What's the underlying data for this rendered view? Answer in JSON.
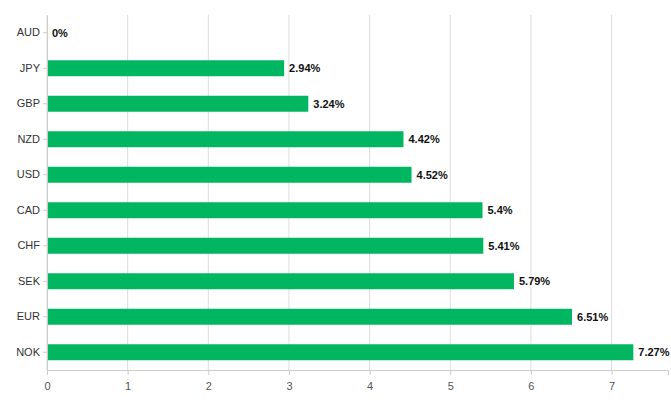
{
  "chart_data": {
    "type": "bar",
    "orientation": "horizontal",
    "categories": [
      "AUD",
      "JPY",
      "GBP",
      "NZD",
      "USD",
      "CAD",
      "CHF",
      "SEK",
      "EUR",
      "NOK"
    ],
    "values": [
      0,
      2.94,
      3.24,
      4.42,
      4.52,
      5.4,
      5.41,
      5.79,
      6.51,
      7.27
    ],
    "value_labels": [
      "0%",
      "2.94%",
      "3.24%",
      "4.42%",
      "4.52%",
      "5.4%",
      "5.41%",
      "5.79%",
      "6.51%",
      "7.27%"
    ],
    "color": "#00b661",
    "xlim": [
      0,
      7.7
    ],
    "xticks": [
      0,
      1,
      2,
      3,
      4,
      5,
      6,
      7
    ],
    "grid": true,
    "data_labels": true
  }
}
